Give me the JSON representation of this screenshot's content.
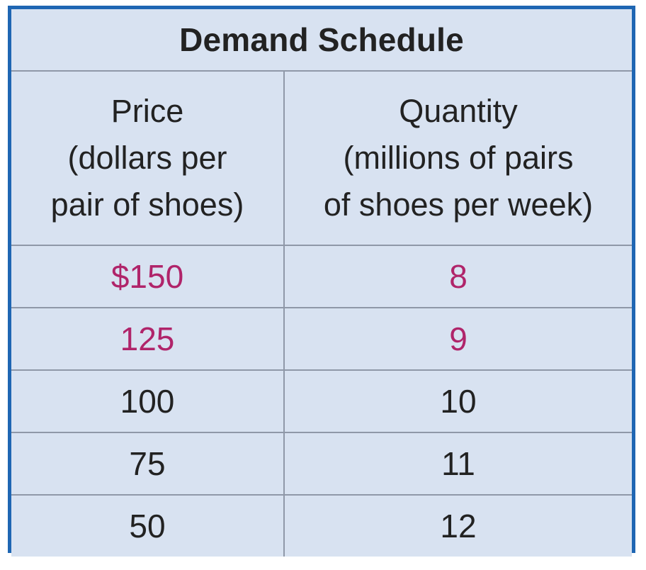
{
  "table": {
    "title": "Demand Schedule",
    "headers": [
      {
        "lines": [
          "Price",
          "(dollars per",
          "pair of shoes)"
        ]
      },
      {
        "lines": [
          "Quantity",
          "(millions of pairs",
          "of shoes per week)"
        ]
      }
    ],
    "rows": [
      {
        "price": "$150",
        "quantity": "8",
        "highlight": true
      },
      {
        "price": "125",
        "quantity": "9",
        "highlight": true
      },
      {
        "price": "100",
        "quantity": "10",
        "highlight": false
      },
      {
        "price": "75",
        "quantity": "11",
        "highlight": false
      },
      {
        "price": "50",
        "quantity": "12",
        "highlight": false
      }
    ]
  },
  "colors": {
    "border": "#1f66b3",
    "background": "#d8e2f1",
    "grid": "#8f98a8",
    "text": "#222222",
    "highlight_text": "#b0246a"
  }
}
